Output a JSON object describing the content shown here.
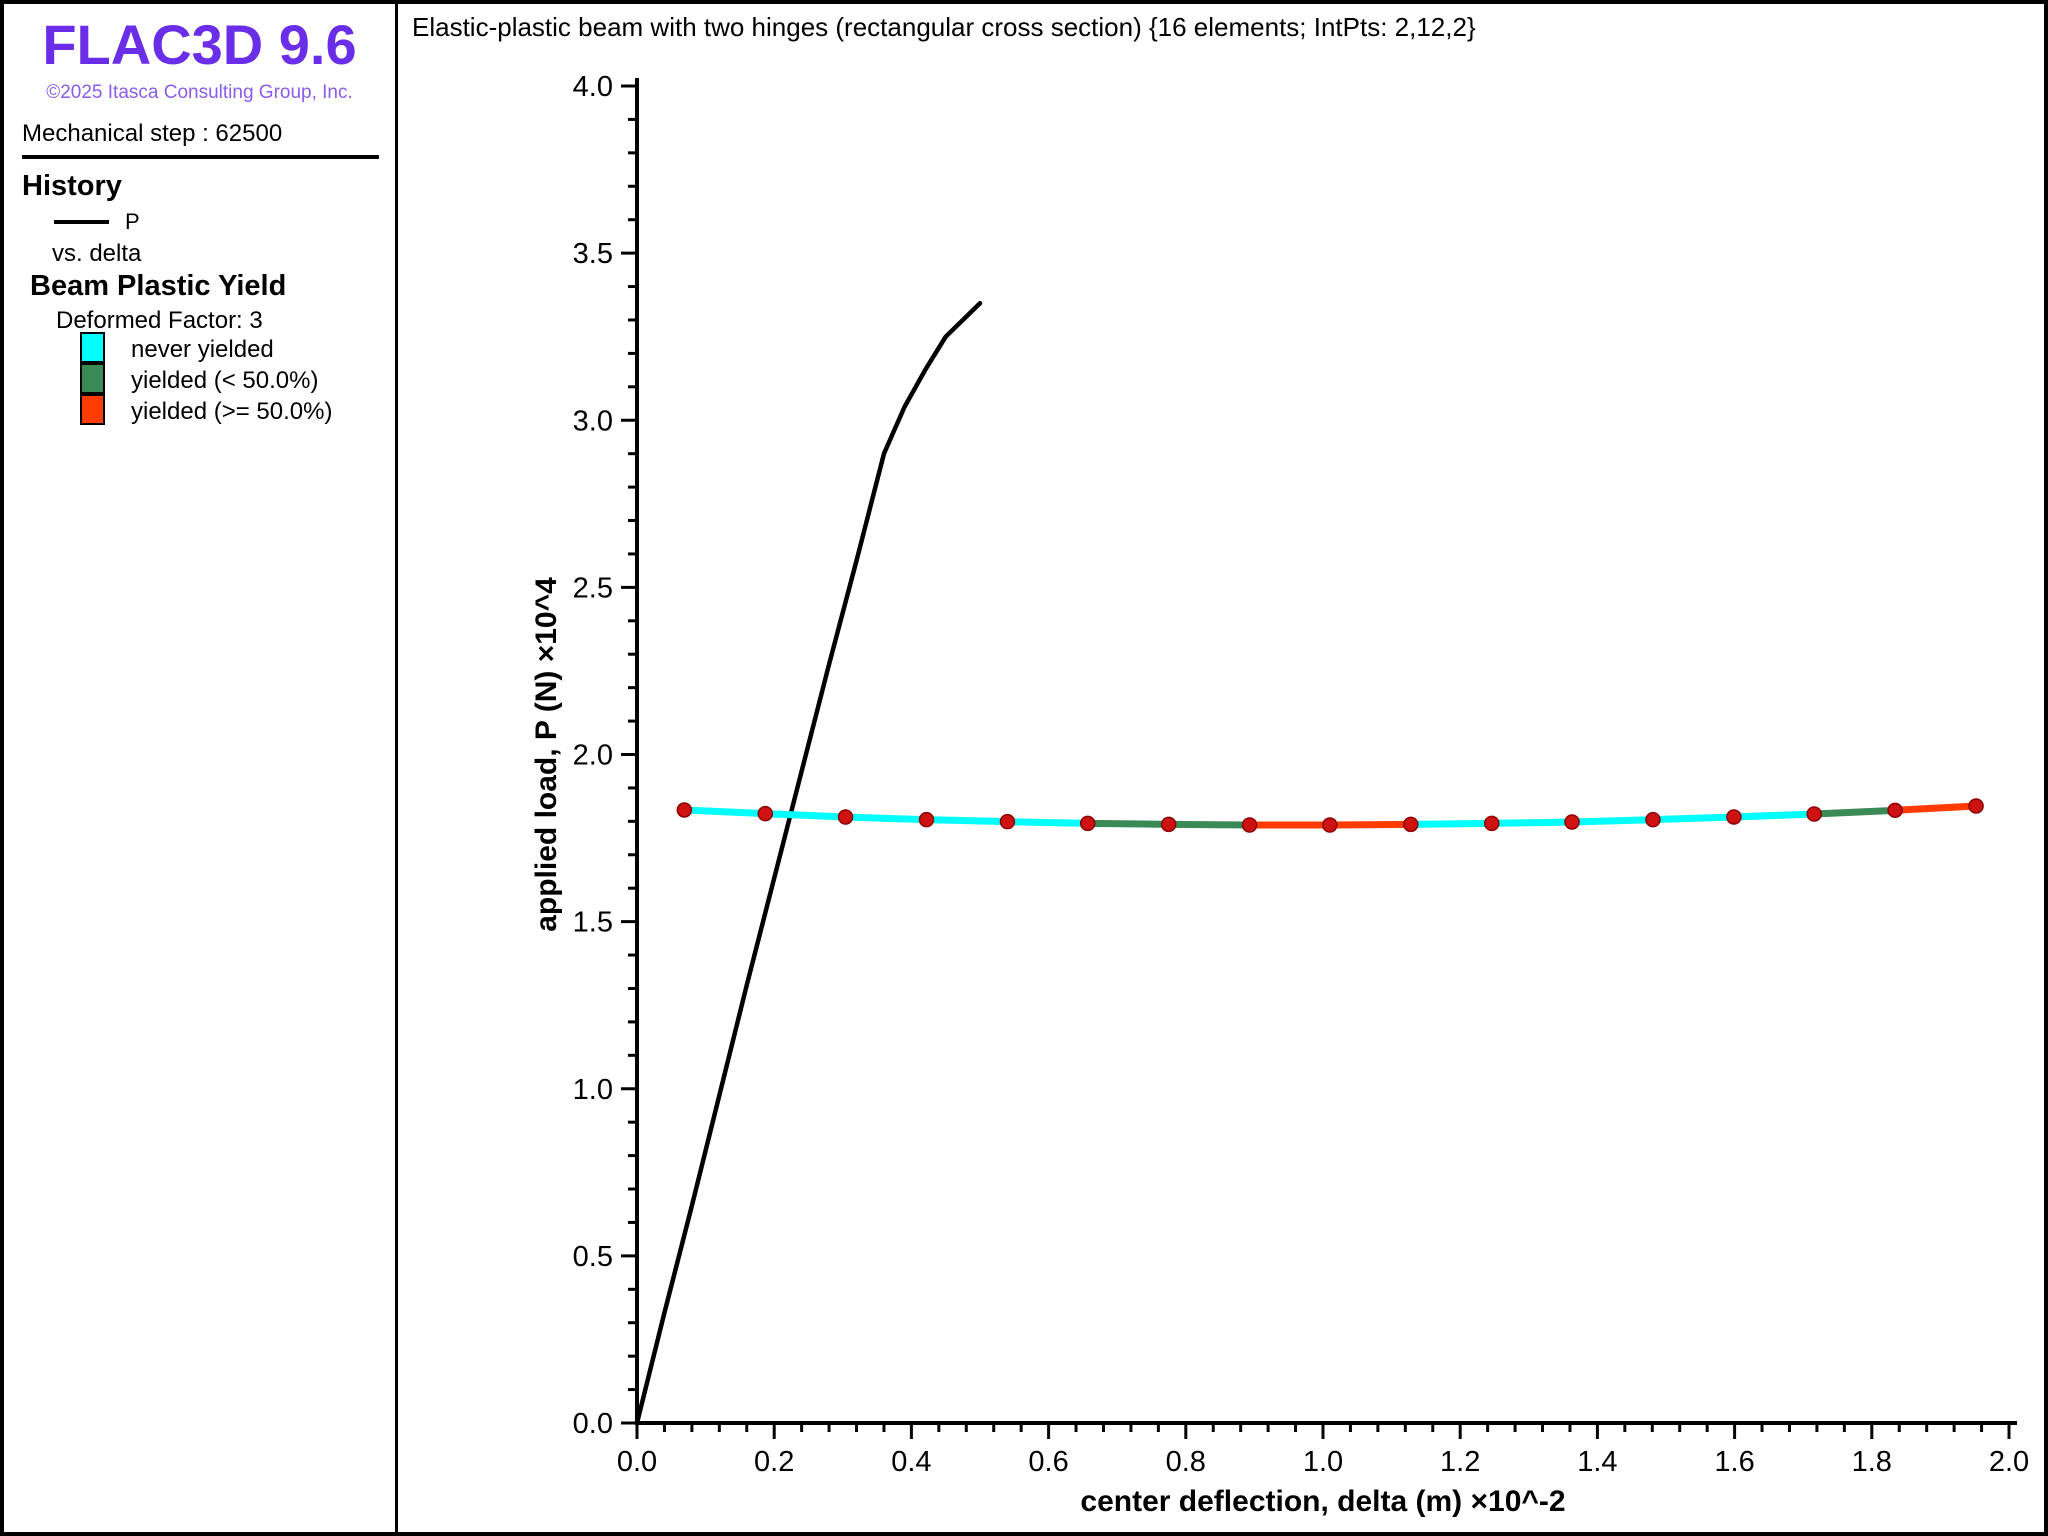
{
  "app": {
    "logo": "FLAC3D 9.6",
    "logo_color": "#6A2EE8",
    "copyright": "©2025 Itasca Consulting Group, Inc.",
    "copyright_color": "#8A5CF0",
    "step_label": "Mechanical step : 62500"
  },
  "sidebar": {
    "history": {
      "title": "History",
      "series_label": "P",
      "series_color": "#000000",
      "vs_label": "vs. delta"
    },
    "yield_legend": {
      "title": "Beam Plastic Yield",
      "deformed_factor": "Deformed Factor: 3",
      "items": [
        {
          "label": "never yielded",
          "color": "#00FFFF",
          "state": "never"
        },
        {
          "label": "yielded (< 50.0%)",
          "color": "#3A8A55",
          "state": "lt50"
        },
        {
          "label": "yielded (>= 50.0%)",
          "color": "#FF3B00",
          "state": "ge50"
        }
      ]
    }
  },
  "chart": {
    "title": "Elastic-plastic beam with two hinges (rectangular cross section) {16 elements; IntPts: 2,12,2}"
  },
  "chart_data": {
    "type": "line",
    "title": "Elastic-plastic beam with two hinges (rectangular cross section) {16 elements; IntPts: 2,12,2}",
    "xlabel": "center deflection, delta (m) ×10^-2",
    "ylabel": "applied load, P (N) ×10^4",
    "xlim": [
      0.0,
      2.0
    ],
    "ylim": [
      0.0,
      4.0
    ],
    "x_major_step": 0.2,
    "x_minor_step": 0.04,
    "y_major_step": 0.5,
    "y_minor_step": 0.1,
    "grid": false,
    "legend_position": "left-sidebar",
    "series": [
      {
        "name": "P vs. delta",
        "color": "#000000",
        "width": 4.5,
        "points": [
          [
            0.0,
            0.0
          ],
          [
            0.04,
            0.33
          ],
          [
            0.08,
            0.65
          ],
          [
            0.12,
            0.98
          ],
          [
            0.16,
            1.31
          ],
          [
            0.2,
            1.63
          ],
          [
            0.24,
            1.95
          ],
          [
            0.28,
            2.27
          ],
          [
            0.32,
            2.58
          ],
          [
            0.36,
            2.9
          ],
          [
            0.39,
            3.04
          ],
          [
            0.42,
            3.15
          ],
          [
            0.45,
            3.25
          ],
          [
            0.48,
            3.31
          ],
          [
            0.5,
            3.35
          ]
        ]
      }
    ],
    "beam_overlay": {
      "description": "deformed beam shape (deformed factor 3), 16 elements / 17 nodes, colored by plastic-yield state",
      "node_delta": [
        0.069,
        0.187,
        0.304,
        0.422,
        0.54,
        0.657,
        0.775,
        0.893,
        1.01,
        1.128,
        1.246,
        1.363,
        1.481,
        1.599,
        1.716,
        1.834,
        1.952
      ],
      "node_P": [
        1.834,
        1.823,
        1.813,
        1.805,
        1.799,
        1.794,
        1.791,
        1.789,
        1.789,
        1.791,
        1.794,
        1.798,
        1.805,
        1.813,
        1.822,
        1.833,
        1.846
      ],
      "element_states": [
        "never",
        "never",
        "never",
        "never",
        "never",
        "lt50",
        "lt50",
        "ge50",
        "ge50",
        "never",
        "never",
        "never",
        "never",
        "never",
        "lt50",
        "ge50"
      ],
      "state_colors": {
        "never": "#00FFFF",
        "lt50": "#3A8A55",
        "ge50": "#FF3B00"
      },
      "line_width": 7,
      "node_color": "#CE1212",
      "node_edge_color": "#8B0000",
      "node_radius": 7
    }
  }
}
